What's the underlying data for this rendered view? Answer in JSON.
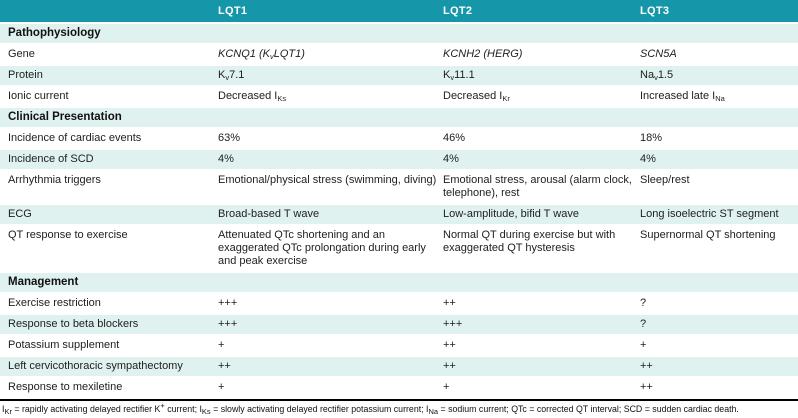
{
  "colors": {
    "header_bg": "#1697a9",
    "header_text": "#ffffff",
    "row_tint": "#dff2f0",
    "rule": "#000000"
  },
  "header": {
    "col_label": "",
    "lqt1": "LQT1",
    "lqt2": "LQT2",
    "lqt3": "LQT3"
  },
  "rows": {
    "section_pathophysiology": {
      "label": "Pathophysiology"
    },
    "gene": {
      "label": "Gene",
      "lqt1": "KCNQ1 (K~v~LQT1)",
      "lqt2": "KCNH2 (HERG)",
      "lqt3": "SCN5A"
    },
    "protein": {
      "label": "Protein",
      "lqt1": "K~v~7.1",
      "lqt2": "K~v~11.1",
      "lqt3": "Na~v~1.5"
    },
    "ionic_current": {
      "label": "Ionic current",
      "lqt1": "Decreased I~Ks~",
      "lqt2": "Decreased I~Kr~",
      "lqt3": "Increased late I~Na~"
    },
    "section_clinical": {
      "label": "Clinical Presentation"
    },
    "incidence_cardiac_events": {
      "label": "Incidence of cardiac events",
      "lqt1": "63%",
      "lqt2": "46%",
      "lqt3": "18%"
    },
    "incidence_scd": {
      "label": "Incidence of SCD",
      "lqt1": "4%",
      "lqt2": "4%",
      "lqt3": "4%"
    },
    "arrhythmia_triggers": {
      "label": "Arrhythmia triggers",
      "lqt1": "Emotional/physical stress (swimming, diving)",
      "lqt2": "Emotional stress, arousal (alarm clock, telephone), rest",
      "lqt3": "Sleep/rest"
    },
    "ecg": {
      "label": "ECG",
      "lqt1": "Broad-based T wave",
      "lqt2": "Low-amplitude, bifid T wave",
      "lqt3": "Long isoelectric ST segment"
    },
    "qt_response": {
      "label": "QT response to exercise",
      "lqt1": "Attenuated QTc shortening and an exaggerated QTc prolongation during early and peak exercise",
      "lqt2": "Normal QT during exercise but with exaggerated QT hysteresis",
      "lqt3": "Supernormal QT shortening"
    },
    "section_management": {
      "label": "Management"
    },
    "exercise_restriction": {
      "label": "Exercise restriction",
      "lqt1": "+++",
      "lqt2": "++",
      "lqt3": "?"
    },
    "beta_blockers": {
      "label": "Response to beta blockers",
      "lqt1": "+++",
      "lqt2": "+++",
      "lqt3": "?"
    },
    "potassium_supplement": {
      "label": "Potassium supplement",
      "lqt1": "+",
      "lqt2": "++",
      "lqt3": "+"
    },
    "sympathectomy": {
      "label": "Left cervicothoracic sympathectomy",
      "lqt1": "++",
      "lqt2": "++",
      "lqt3": "++"
    },
    "mexiletine": {
      "label": "Response to mexiletine",
      "lqt1": "+",
      "lqt2": "+",
      "lqt3": "++"
    }
  },
  "footnote": "I~Kr~ = rapidly activating delayed rectifier K^+^ current; I~Ks~ = slowly activating delayed rectifier potassium current; I~Na~ = sodium current; QTc = corrected QT interval; SCD = sudden cardiac death."
}
